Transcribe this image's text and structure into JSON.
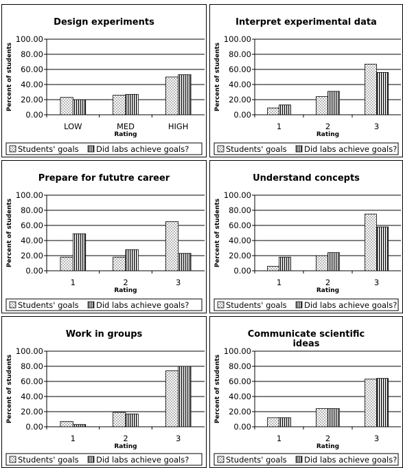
{
  "legend": {
    "goals_label": "Students' goals",
    "labs_label": "Did labs achieve goals?"
  },
  "chart_data": [
    {
      "type": "bar",
      "title": "Design experiments",
      "xlabel": "Rating",
      "ylabel": "Percent of students",
      "categories": [
        "LOW",
        "MED",
        "HIGH"
      ],
      "ylim": [
        0,
        100
      ],
      "yticks": [
        "0.00",
        "20.00",
        "40.00",
        "60.00",
        "80.00",
        "100.00"
      ],
      "series": [
        {
          "name": "Students' goals",
          "values": [
            23,
            26,
            50
          ]
        },
        {
          "name": "Did labs achieve goals?",
          "values": [
            20,
            27,
            53
          ]
        }
      ]
    },
    {
      "type": "bar",
      "title": "Interpret experimental data",
      "xlabel": "Rating",
      "ylabel": "Percent of students",
      "categories": [
        "1",
        "2",
        "3"
      ],
      "ylim": [
        0,
        100
      ],
      "yticks": [
        "0.00",
        "20.00",
        "40.00",
        "60.00",
        "80.00",
        "100.00"
      ],
      "series": [
        {
          "name": "Students' goals",
          "values": [
            9,
            24,
            67
          ]
        },
        {
          "name": "Did labs achieve goals?",
          "values": [
            13,
            31,
            56
          ]
        }
      ]
    },
    {
      "type": "bar",
      "title": "Prepare for fututre career",
      "xlabel": "Rating",
      "ylabel": "Percent of students",
      "categories": [
        "1",
        "2",
        "3"
      ],
      "ylim": [
        0,
        100
      ],
      "yticks": [
        "0.00",
        "20.00",
        "40.00",
        "60.00",
        "80.00",
        "100.00"
      ],
      "series": [
        {
          "name": "Students' goals",
          "values": [
            18,
            18,
            65
          ]
        },
        {
          "name": "Did labs achieve goals?",
          "values": [
            49,
            28,
            23
          ]
        }
      ]
    },
    {
      "type": "bar",
      "title": "Understand concepts",
      "xlabel": "Rating",
      "ylabel": "Percent of students",
      "categories": [
        "1",
        "2",
        "3"
      ],
      "ylim": [
        0,
        100
      ],
      "yticks": [
        "0.00",
        "20.00",
        "40.00",
        "60.00",
        "80.00",
        "100.00"
      ],
      "series": [
        {
          "name": "Students' goals",
          "values": [
            6,
            20,
            75
          ]
        },
        {
          "name": "Did labs achieve goals?",
          "values": [
            18,
            24,
            58
          ]
        }
      ]
    },
    {
      "type": "bar",
      "title": "Work in groups",
      "xlabel": "Rating",
      "ylabel": "Percent of students",
      "categories": [
        "1",
        "2",
        "3"
      ],
      "ylim": [
        0,
        100
      ],
      "yticks": [
        "0.00",
        "20.00",
        "40.00",
        "60.00",
        "80.00",
        "100.00"
      ],
      "series": [
        {
          "name": "Students' goals",
          "values": [
            7,
            19,
            74
          ]
        },
        {
          "name": "Did labs achieve goals?",
          "values": [
            3,
            17,
            80
          ]
        }
      ]
    },
    {
      "type": "bar",
      "title": "Communicate scientific ideas",
      "title_lines": [
        "Communicate scientific",
        "ideas"
      ],
      "xlabel": "Rating",
      "ylabel": "Percent of students",
      "categories": [
        "1",
        "2",
        "3"
      ],
      "ylim": [
        0,
        100
      ],
      "yticks": [
        "0.00",
        "20.00",
        "40.00",
        "60.00",
        "80.00",
        "100.00"
      ],
      "series": [
        {
          "name": "Students' goals",
          "values": [
            12,
            24,
            63
          ]
        },
        {
          "name": "Did labs achieve goals?",
          "values": [
            12,
            24,
            64
          ]
        }
      ]
    }
  ]
}
